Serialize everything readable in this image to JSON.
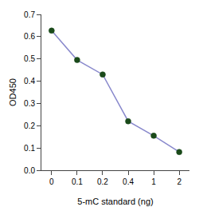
{
  "chart_data": {
    "type": "line",
    "xlabel": "5-mC standard (ng)",
    "ylabel": "OD450",
    "categories": [
      "0",
      "0.1",
      "0.2",
      "0.4",
      "1",
      "2"
    ],
    "values": [
      0.627,
      0.495,
      0.43,
      0.22,
      0.155,
      0.082
    ],
    "color": "#8888cc",
    "marker": "circle",
    "ylim": [
      0,
      0.7
    ],
    "yticks": [
      {
        "value": 0,
        "label": "0.0"
      },
      0.1,
      0.2,
      0.3,
      0.4,
      0.5,
      0.6,
      0.7
    ],
    "grid": false
  }
}
